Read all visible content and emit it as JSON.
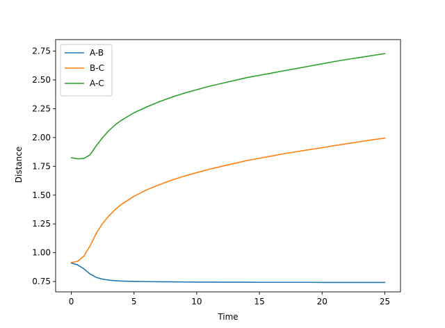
{
  "chart_data": {
    "type": "line",
    "title": "",
    "xlabel": "Time",
    "ylabel": "Distance",
    "xlim": [
      -1.25,
      26.25
    ],
    "ylim": [
      0.66,
      2.85
    ],
    "xticks": [
      0,
      5,
      10,
      15,
      20,
      25
    ],
    "xtick_labels": [
      "0",
      "5",
      "10",
      "15",
      "20",
      "25"
    ],
    "yticks": [
      0.75,
      1.0,
      1.25,
      1.5,
      1.75,
      2.0,
      2.25,
      2.5,
      2.75
    ],
    "ytick_labels": [
      "0.75",
      "1.00",
      "1.25",
      "1.50",
      "1.75",
      "2.00",
      "2.25",
      "2.50",
      "2.75"
    ],
    "grid": false,
    "legend_position": "upper-left",
    "x": [
      0,
      0.5,
      1,
      1.5,
      2,
      2.5,
      3,
      3.5,
      4,
      5,
      6,
      7,
      8,
      9,
      10,
      11,
      12,
      13,
      14,
      15,
      16,
      17,
      18,
      19,
      20,
      21,
      22,
      23,
      24,
      25
    ],
    "series": [
      {
        "name": "A-B",
        "color": "#1f77b4",
        "values": [
          0.91,
          0.895,
          0.86,
          0.815,
          0.785,
          0.77,
          0.762,
          0.757,
          0.754,
          0.751,
          0.749,
          0.748,
          0.747,
          0.746,
          0.745,
          0.745,
          0.744,
          0.744,
          0.744,
          0.743,
          0.743,
          0.743,
          0.743,
          0.743,
          0.742,
          0.742,
          0.742,
          0.742,
          0.742,
          0.742
        ]
      },
      {
        "name": "B-C",
        "color": "#ff7f0e",
        "values": [
          0.915,
          0.925,
          0.97,
          1.06,
          1.17,
          1.255,
          1.32,
          1.375,
          1.42,
          1.49,
          1.545,
          1.59,
          1.63,
          1.665,
          1.695,
          1.725,
          1.75,
          1.775,
          1.8,
          1.82,
          1.84,
          1.86,
          1.878,
          1.895,
          1.912,
          1.93,
          1.947,
          1.963,
          1.98,
          1.995
        ]
      },
      {
        "name": "A-C",
        "color": "#2ca02c",
        "values": [
          1.825,
          1.815,
          1.818,
          1.85,
          1.93,
          2.0,
          2.06,
          2.11,
          2.15,
          2.215,
          2.265,
          2.31,
          2.35,
          2.385,
          2.415,
          2.445,
          2.47,
          2.495,
          2.52,
          2.54,
          2.56,
          2.58,
          2.6,
          2.62,
          2.64,
          2.66,
          2.678,
          2.695,
          2.712,
          2.728
        ]
      }
    ]
  }
}
